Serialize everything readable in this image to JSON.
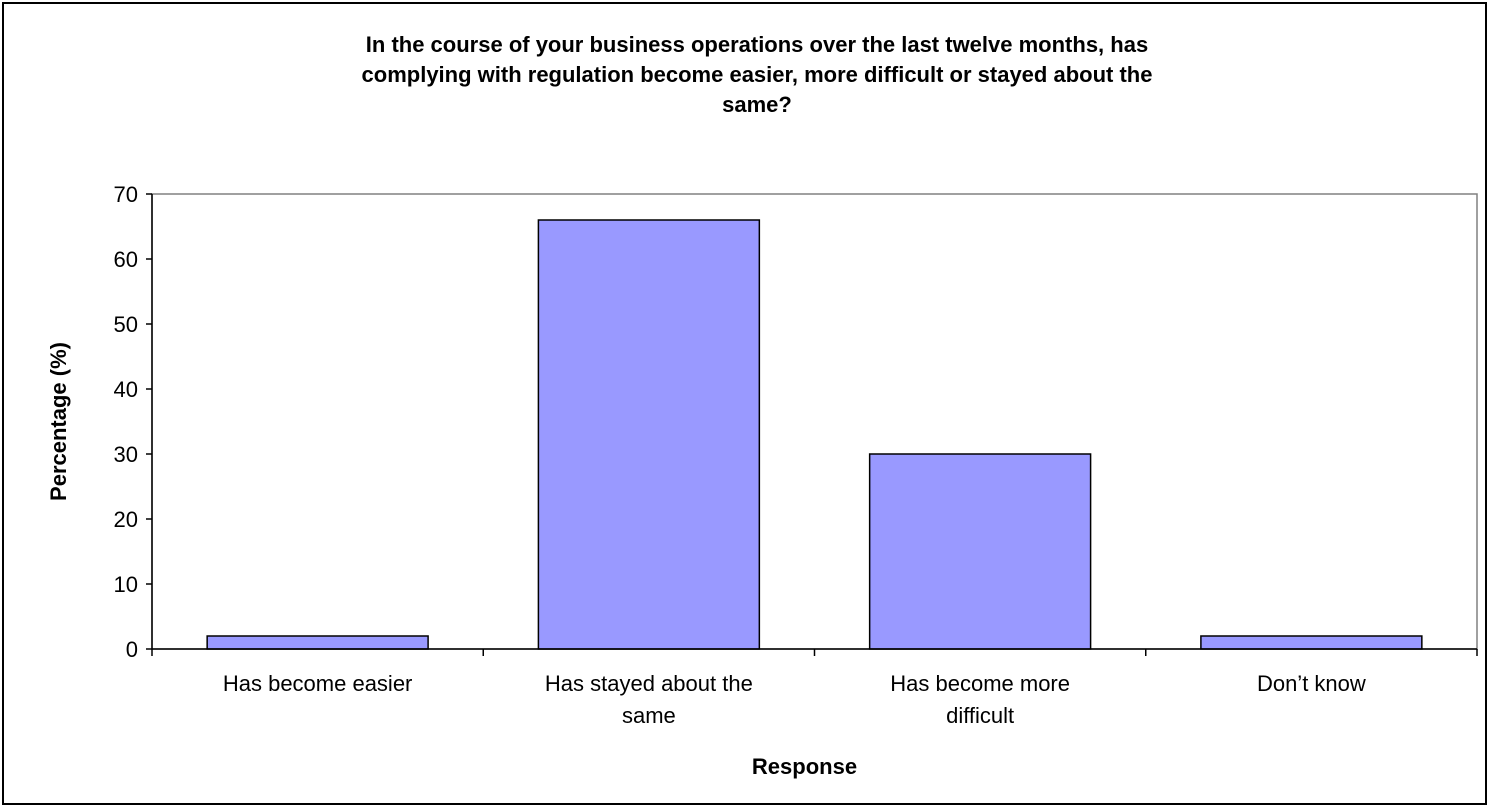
{
  "chart_data": {
    "type": "bar",
    "title": "In the course of your business operations over the last twelve months, has complying with regulation become easier, more difficult or stayed about the same?",
    "title_lines": [
      "In the course of your business operations over the last twelve months, has",
      "complying with regulation become easier, more difficult or stayed about the",
      "same?"
    ],
    "xlabel": "Response",
    "ylabel": "Percentage (%)",
    "categories": [
      "Has become easier",
      "Has stayed about the same",
      "Has become more difficult",
      "Don’t know"
    ],
    "category_label_lines": [
      [
        "Has become easier"
      ],
      [
        "Has stayed about the",
        "same"
      ],
      [
        "Has become more",
        "difficult"
      ],
      [
        "Don’t know"
      ]
    ],
    "values": [
      2,
      66,
      30,
      2
    ],
    "ylim": [
      0,
      70
    ],
    "yticks": [
      0,
      10,
      20,
      30,
      40,
      50,
      60,
      70
    ],
    "grid": false,
    "legend": "none",
    "colors": {
      "bar_fill": "#9999FF",
      "bar_stroke": "#000000",
      "plot_border": "#808080",
      "axis": "#000000"
    }
  }
}
